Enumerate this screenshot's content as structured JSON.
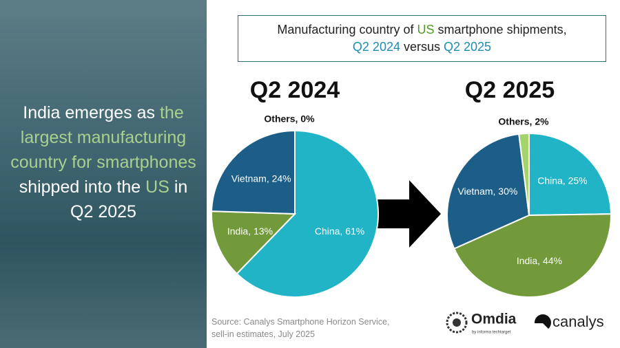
{
  "headline": {
    "parts": [
      "India emerges as ",
      "the largest manufacturing country for smartphones",
      " shipped into the ",
      "US",
      " in Q2 2025"
    ]
  },
  "title_box": {
    "parts": [
      "Manufacturing country of ",
      "US",
      " smartphone shipments,",
      "Q2 2024",
      " versus ",
      "Q2 2025"
    ]
  },
  "source": [
    "Source: Canalys Smartphone Horizon Service,",
    "sell-in estimates, July 2025"
  ],
  "logos": {
    "omdia": "Omdia",
    "omdia_sub": "by informa techtarget",
    "canalys": "canalys"
  },
  "chart_data": [
    {
      "type": "pie",
      "title": "Q2 2024",
      "categories": [
        "China",
        "India",
        "Vietnam",
        "Others"
      ],
      "values": [
        61,
        13,
        24,
        0
      ],
      "value_labels": [
        "China, 61%",
        "India, 13%",
        "Vietnam, 24%",
        "Others, 0%"
      ],
      "colors": [
        "#21b3c6",
        "#72993a",
        "#1c5e88",
        "#a5d36c"
      ]
    },
    {
      "type": "pie",
      "title": "Q2 2025",
      "categories": [
        "China",
        "India",
        "Vietnam",
        "Others"
      ],
      "values": [
        25,
        44,
        30,
        2
      ],
      "value_labels": [
        "China, 25%",
        "India, 44%",
        "Vietnam, 30%",
        "Others, 2%"
      ],
      "colors": [
        "#21b3c6",
        "#72993a",
        "#1c5e88",
        "#a5d36c"
      ]
    }
  ]
}
